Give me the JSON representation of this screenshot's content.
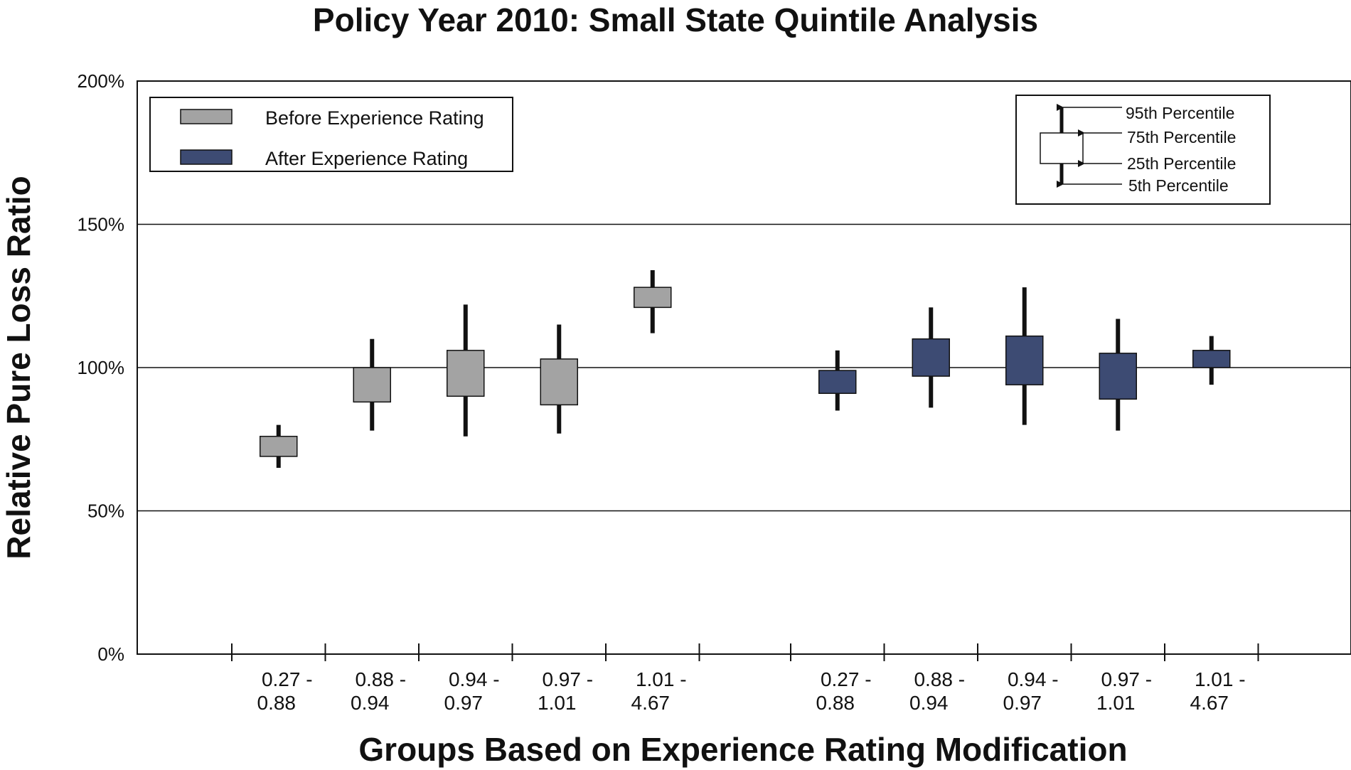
{
  "chart_data": {
    "type": "box",
    "title": "Policy Year 2010: Small State Quintile Analysis",
    "xlabel": "Groups Based on Experience Rating Modification",
    "ylabel": "Relative Pure Loss Ratio",
    "ylim": [
      0,
      200
    ],
    "yticks": [
      "0%",
      "50%",
      "100%",
      "150%",
      "200%"
    ],
    "grid": true,
    "categories": [
      [
        "0.27  -",
        "0.88"
      ],
      [
        "0.88  -",
        "0.94"
      ],
      [
        "0.94  -",
        "0.97"
      ],
      [
        "0.97  -",
        "1.01"
      ],
      [
        "1.01  -",
        "4.67"
      ]
    ],
    "series": [
      {
        "name": "Before Experience Rating",
        "color": "#a3a3a3",
        "boxes": [
          {
            "p5": 65,
            "p25": 69,
            "p75": 76,
            "p95": 80
          },
          {
            "p5": 78,
            "p25": 88,
            "p75": 100,
            "p95": 110
          },
          {
            "p5": 76,
            "p25": 90,
            "p75": 106,
            "p95": 122
          },
          {
            "p5": 77,
            "p25": 87,
            "p75": 103,
            "p95": 115
          },
          {
            "p5": 112,
            "p25": 121,
            "p75": 128,
            "p95": 134
          }
        ]
      },
      {
        "name": "After Experience Rating",
        "color": "#3d4b73",
        "boxes": [
          {
            "p5": 85,
            "p25": 91,
            "p75": 99,
            "p95": 106
          },
          {
            "p5": 86,
            "p25": 97,
            "p75": 110,
            "p95": 121
          },
          {
            "p5": 80,
            "p25": 94,
            "p75": 111,
            "p95": 128
          },
          {
            "p5": 78,
            "p25": 89,
            "p75": 105,
            "p95": 117
          },
          {
            "p5": 94,
            "p25": 100,
            "p75": 106,
            "p95": 111
          }
        ]
      }
    ],
    "legend": {
      "position": "top-left",
      "items": [
        "Before Experience Rating",
        "After Experience Rating"
      ]
    },
    "percentile_key": {
      "position": "top-right",
      "labels": [
        "95th Percentile",
        "75th Percentile",
        "25th Percentile",
        "5th Percentile"
      ]
    }
  }
}
